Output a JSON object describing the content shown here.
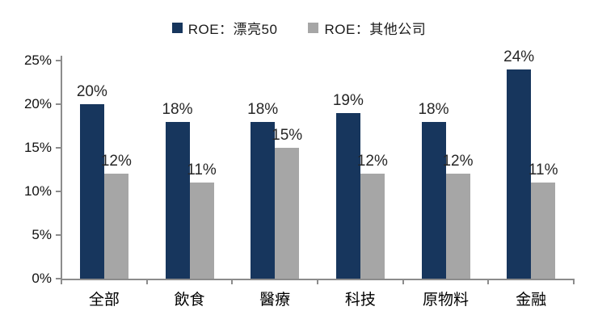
{
  "chart_data": {
    "type": "bar",
    "categories": [
      "全部",
      "飲食",
      "醫療",
      "科技",
      "原物料",
      "金融"
    ],
    "series": [
      {
        "name": "ROE：漂亮50",
        "color": "#17365d",
        "values": [
          20,
          18,
          18,
          19,
          18,
          24
        ]
      },
      {
        "name": "ROE：其他公司",
        "color": "#a6a6a6",
        "values": [
          12,
          11,
          15,
          12,
          12,
          11
        ]
      }
    ],
    "title": "",
    "xlabel": "",
    "ylabel": "",
    "ylim": [
      0,
      25
    ],
    "ytick_step": 5,
    "ytick_labels": [
      "0%",
      "5%",
      "10%",
      "15%",
      "20%",
      "25%"
    ],
    "value_label_suffix": "%",
    "grid": false,
    "legend_position": "top"
  },
  "colors": {
    "axis": "#8c8c8c",
    "text": "#1a1a1a",
    "background": "#ffffff"
  }
}
